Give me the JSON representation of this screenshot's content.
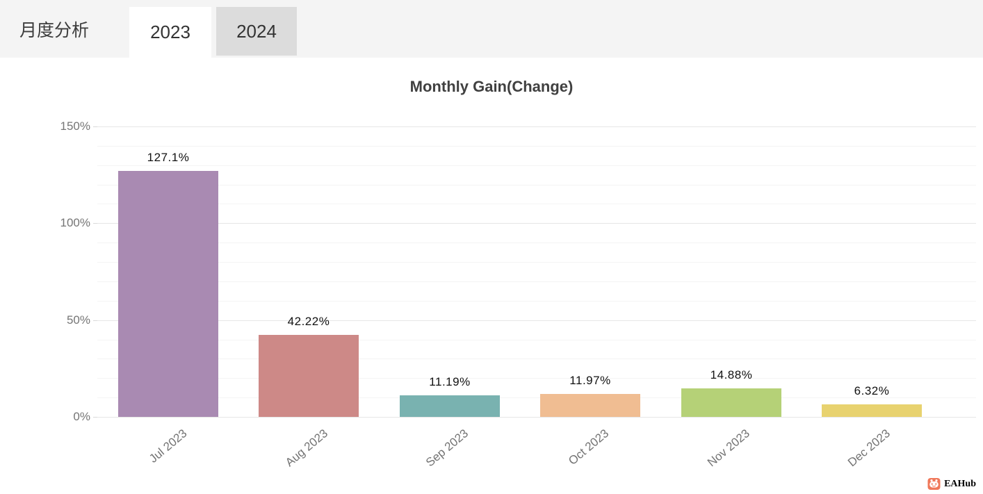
{
  "header": {
    "menu_label": "月度分析",
    "tabs": [
      {
        "label": "2023",
        "active": true
      },
      {
        "label": "2024",
        "active": false
      }
    ]
  },
  "chart_data": {
    "type": "bar",
    "title": "Monthly Gain(Change)",
    "categories": [
      "Jul 2023",
      "Aug 2023",
      "Sep 2023",
      "Oct 2023",
      "Nov 2023",
      "Dec 2023"
    ],
    "values": [
      127.1,
      42.22,
      11.19,
      11.97,
      14.88,
      6.32
    ],
    "value_labels": [
      "127.1%",
      "42.22%",
      "11.19%",
      "11.97%",
      "14.88%",
      "6.32%"
    ],
    "bar_colors": [
      "#a98ab2",
      "#cd8987",
      "#79b2b0",
      "#f0bd92",
      "#b5d177",
      "#e8d26f"
    ],
    "ylim": [
      0,
      150
    ],
    "y_ticks": [
      {
        "value": 0,
        "label": "0%"
      },
      {
        "value": 50,
        "label": "50%"
      },
      {
        "value": 100,
        "label": "100%"
      },
      {
        "value": 150,
        "label": "150%"
      }
    ],
    "y_minor_step": 10,
    "grid": true,
    "legend_position": "none",
    "xlabel": "",
    "ylabel": ""
  },
  "watermark": {
    "label": "EAHub",
    "color": "#f0785a"
  }
}
